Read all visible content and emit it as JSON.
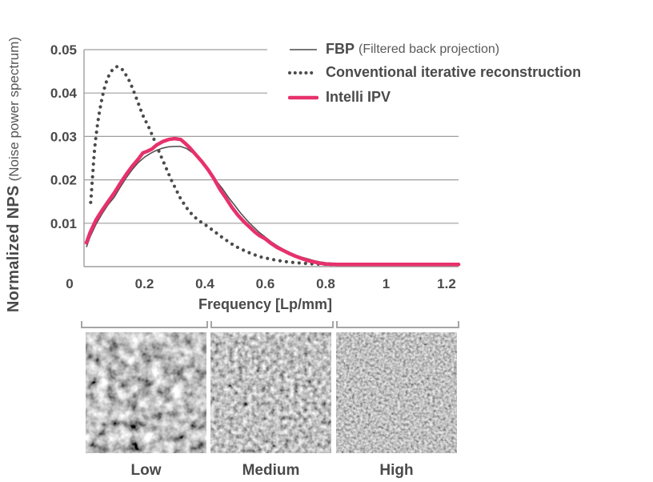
{
  "chart_data": {
    "type": "line",
    "title": "",
    "xlabel": "Frequency [Lp/mm]",
    "ylabel": "Normalized NPS (Noise power spectrum)",
    "ylabel_bold": "Normalized NPS",
    "ylabel_paren": "(Noise power spectrum)",
    "xlim": [
      0,
      1.24
    ],
    "ylim": [
      0,
      0.05
    ],
    "xticks": [
      0,
      0.2,
      0.4,
      0.6,
      0.8,
      1,
      1.2
    ],
    "xtick_labels": [
      "0",
      "0.2",
      "0.4",
      "0.6",
      "0.8",
      "1",
      "1.2"
    ],
    "yticks": [
      0.01,
      0.02,
      0.03,
      0.04,
      0.05
    ],
    "ytick_labels": [
      "0.01",
      "0.02",
      "0.03",
      "0.04",
      "0.05"
    ],
    "grid": "horizontal-only",
    "legend_position": "top-right",
    "axis_color": "#9e9e9e",
    "text_color": "#4a4a4a",
    "legend": [
      {
        "label": "FBP",
        "sublabel": "(Filtered back projection)"
      },
      {
        "label": "Conventional iterative reconstruction",
        "sublabel": ""
      },
      {
        "label": "Intelli IPV",
        "sublabel": ""
      }
    ],
    "series": [
      {
        "id": "fbp",
        "name": "FBP (Filtered back projection)",
        "style": "solid-thin",
        "color": "#4a4a4a",
        "x": [
          0.008,
          0.02,
          0.04,
          0.06,
          0.08,
          0.1,
          0.12,
          0.14,
          0.16,
          0.18,
          0.2,
          0.22,
          0.24,
          0.26,
          0.28,
          0.3,
          0.32,
          0.34,
          0.36,
          0.38,
          0.4,
          0.42,
          0.44,
          0.46,
          0.48,
          0.5,
          0.52,
          0.54,
          0.56,
          0.58,
          0.6,
          0.62,
          0.64,
          0.66,
          0.68,
          0.7,
          0.72,
          0.74,
          0.76,
          0.78,
          0.8,
          0.84,
          0.88,
          0.92,
          1.0,
          1.1,
          1.24
        ],
        "y": [
          0.0045,
          0.0068,
          0.0098,
          0.0122,
          0.0143,
          0.016,
          0.0183,
          0.0205,
          0.0224,
          0.024,
          0.0252,
          0.0261,
          0.0268,
          0.0273,
          0.0276,
          0.0277,
          0.0277,
          0.0272,
          0.0262,
          0.0248,
          0.0232,
          0.0212,
          0.0196,
          0.0178,
          0.0158,
          0.014,
          0.0122,
          0.0106,
          0.0092,
          0.0079,
          0.0068,
          0.0057,
          0.0048,
          0.004,
          0.0033,
          0.0027,
          0.0022,
          0.0018,
          0.0014,
          0.0011,
          0.0009,
          0.0007,
          0.0006,
          0.0005,
          0.0004,
          0.0004,
          0.0004
        ]
      },
      {
        "id": "conventional-iterative",
        "name": "Conventional iterative reconstruction",
        "style": "dotted",
        "color": "#4a4a4a",
        "x": [
          0.022,
          0.024,
          0.026,
          0.028,
          0.031,
          0.034,
          0.037,
          0.04,
          0.045,
          0.05,
          0.055,
          0.06,
          0.07,
          0.08,
          0.09,
          0.1,
          0.11,
          0.12,
          0.13,
          0.14,
          0.15,
          0.16,
          0.17,
          0.18,
          0.19,
          0.2,
          0.21,
          0.22,
          0.23,
          0.24,
          0.25,
          0.26,
          0.27,
          0.28,
          0.29,
          0.3,
          0.32,
          0.34,
          0.36,
          0.38,
          0.4,
          0.43,
          0.46,
          0.5,
          0.54,
          0.58,
          0.62,
          0.66,
          0.7,
          0.76,
          0.82,
          0.9,
          1.0,
          1.1,
          1.24
        ],
        "y": [
          0.0148,
          0.0166,
          0.0185,
          0.0205,
          0.0235,
          0.0262,
          0.0285,
          0.0302,
          0.033,
          0.0352,
          0.0372,
          0.039,
          0.0418,
          0.0437,
          0.045,
          0.0458,
          0.0461,
          0.0458,
          0.0452,
          0.044,
          0.0428,
          0.0412,
          0.0394,
          0.0376,
          0.0357,
          0.034,
          0.0328,
          0.0312,
          0.0296,
          0.028,
          0.0262,
          0.0246,
          0.023,
          0.0214,
          0.0198,
          0.0184,
          0.0156,
          0.0135,
          0.0118,
          0.0106,
          0.0097,
          0.0082,
          0.0066,
          0.0047,
          0.0034,
          0.0023,
          0.0017,
          0.0012,
          0.0009,
          0.0006,
          0.0005,
          0.0005,
          0.0005,
          0.0005,
          0.0005
        ]
      },
      {
        "id": "intelli-ipv",
        "name": "Intelli IPV",
        "style": "solid-thick",
        "color": "#e7316c",
        "x": [
          0.008,
          0.02,
          0.04,
          0.06,
          0.08,
          0.1,
          0.12,
          0.14,
          0.16,
          0.18,
          0.195,
          0.21,
          0.225,
          0.24,
          0.26,
          0.28,
          0.3,
          0.32,
          0.335,
          0.35,
          0.37,
          0.39,
          0.41,
          0.43,
          0.45,
          0.47,
          0.49,
          0.51,
          0.53,
          0.55,
          0.565,
          0.58,
          0.6,
          0.62,
          0.64,
          0.66,
          0.68,
          0.7,
          0.72,
          0.74,
          0.76,
          0.78,
          0.8,
          0.84,
          0.88,
          0.92,
          1.0,
          1.1,
          1.24
        ],
        "y": [
          0.0055,
          0.0078,
          0.0108,
          0.013,
          0.015,
          0.017,
          0.0192,
          0.0213,
          0.0232,
          0.0248,
          0.0262,
          0.0266,
          0.0271,
          0.028,
          0.0288,
          0.0293,
          0.0295,
          0.0293,
          0.0284,
          0.0274,
          0.0258,
          0.0242,
          0.0224,
          0.0203,
          0.0178,
          0.0158,
          0.0136,
          0.0118,
          0.0103,
          0.009,
          0.008,
          0.0072,
          0.0064,
          0.0053,
          0.0044,
          0.0037,
          0.003,
          0.0024,
          0.0019,
          0.0014,
          0.0011,
          0.0008,
          0.0006,
          0.0005,
          0.0005,
          0.0005,
          0.0005,
          0.0005,
          0.0005
        ]
      }
    ]
  },
  "panels": {
    "labels": [
      "Low",
      "Medium",
      "High"
    ]
  }
}
